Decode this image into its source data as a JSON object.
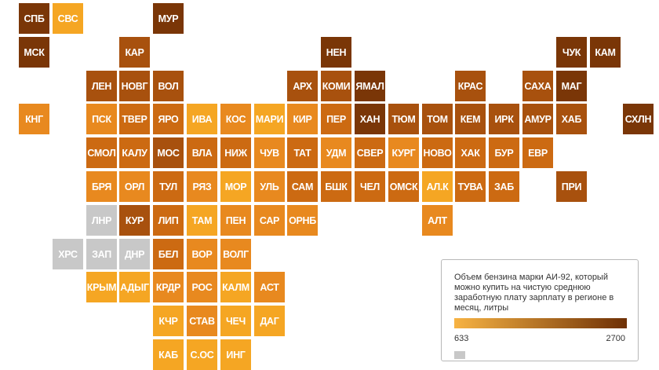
{
  "colors": {
    "scale": [
      "#f5a623",
      "#e8891f",
      "#cc6a12",
      "#a8510e",
      "#7a3607"
    ],
    "nodata": "#c8c8c8",
    "legend_low": "#f7b343",
    "legend_high": "#6e3006"
  },
  "legend": {
    "title": "Объем бензина марки АИ-92, который можно купить на чистую среднюю заработную плату зарплату в регионе в месяц, литры",
    "min_label": "633",
    "max_label": "2700"
  },
  "regions": [
    {
      "label": "СПБ",
      "col": 0,
      "row": 0,
      "level": 4
    },
    {
      "label": "СВС",
      "col": 1,
      "row": 0,
      "level": 0
    },
    {
      "label": "МУР",
      "col": 4,
      "row": 0,
      "level": 4
    },
    {
      "label": "МСК",
      "col": 0,
      "row": 1,
      "level": 4
    },
    {
      "label": "КАР",
      "col": 3,
      "row": 1,
      "level": 3
    },
    {
      "label": "НЕН",
      "col": 9,
      "row": 1,
      "level": 4
    },
    {
      "label": "ЧУК",
      "col": 16,
      "row": 1,
      "level": 4
    },
    {
      "label": "КАМ",
      "col": 17,
      "row": 1,
      "level": 4
    },
    {
      "label": "ЛЕН",
      "col": 2,
      "row": 2,
      "level": 3
    },
    {
      "label": "НОВГ",
      "col": 3,
      "row": 2,
      "level": 3
    },
    {
      "label": "ВОЛ",
      "col": 4,
      "row": 2,
      "level": 3
    },
    {
      "label": "АРХ",
      "col": 8,
      "row": 2,
      "level": 3
    },
    {
      "label": "КОМИ",
      "col": 9,
      "row": 2,
      "level": 3
    },
    {
      "label": "ЯМАЛ",
      "col": 10,
      "row": 2,
      "level": 4
    },
    {
      "label": "КРАС",
      "col": 13,
      "row": 2,
      "level": 3
    },
    {
      "label": "САХА",
      "col": 15,
      "row": 2,
      "level": 3
    },
    {
      "label": "МАГ",
      "col": 16,
      "row": 2,
      "level": 4
    },
    {
      "label": "КНГ",
      "col": 0,
      "row": 3,
      "level": 1
    },
    {
      "label": "ПСК",
      "col": 2,
      "row": 3,
      "level": 1
    },
    {
      "label": "ТВЕР",
      "col": 3,
      "row": 3,
      "level": 2
    },
    {
      "label": "ЯРО",
      "col": 4,
      "row": 3,
      "level": 2
    },
    {
      "label": "ИВА",
      "col": 5,
      "row": 3,
      "level": 0
    },
    {
      "label": "КОС",
      "col": 6,
      "row": 3,
      "level": 1
    },
    {
      "label": "МАРИ",
      "col": 7,
      "row": 3,
      "level": 0
    },
    {
      "label": "КИР",
      "col": 8,
      "row": 3,
      "level": 1
    },
    {
      "label": "ПЕР",
      "col": 9,
      "row": 3,
      "level": 2
    },
    {
      "label": "ХАН",
      "col": 10,
      "row": 3,
      "level": 4
    },
    {
      "label": "ТЮМ",
      "col": 11,
      "row": 3,
      "level": 3
    },
    {
      "label": "ТОМ",
      "col": 12,
      "row": 3,
      "level": 3
    },
    {
      "label": "КЕМ",
      "col": 13,
      "row": 3,
      "level": 3
    },
    {
      "label": "ИРК",
      "col": 14,
      "row": 3,
      "level": 3
    },
    {
      "label": "АМУР",
      "col": 15,
      "row": 3,
      "level": 3
    },
    {
      "label": "ХАБ",
      "col": 16,
      "row": 3,
      "level": 3
    },
    {
      "label": "СХЛН",
      "col": 18,
      "row": 3,
      "level": 4
    },
    {
      "label": "СМОЛ",
      "col": 2,
      "row": 4,
      "level": 2
    },
    {
      "label": "КАЛУ",
      "col": 3,
      "row": 4,
      "level": 2
    },
    {
      "label": "МОС",
      "col": 4,
      "row": 4,
      "level": 3
    },
    {
      "label": "ВЛА",
      "col": 5,
      "row": 4,
      "level": 2
    },
    {
      "label": "НИЖ",
      "col": 6,
      "row": 4,
      "level": 2
    },
    {
      "label": "ЧУВ",
      "col": 7,
      "row": 4,
      "level": 1
    },
    {
      "label": "ТАТ",
      "col": 8,
      "row": 4,
      "level": 2
    },
    {
      "label": "УДМ",
      "col": 9,
      "row": 4,
      "level": 1
    },
    {
      "label": "СВЕР",
      "col": 10,
      "row": 4,
      "level": 2
    },
    {
      "label": "КУРГ",
      "col": 11,
      "row": 4,
      "level": 1
    },
    {
      "label": "НОВО",
      "col": 12,
      "row": 4,
      "level": 2
    },
    {
      "label": "ХАК",
      "col": 13,
      "row": 4,
      "level": 2
    },
    {
      "label": "БУР",
      "col": 14,
      "row": 4,
      "level": 2
    },
    {
      "label": "ЕВР",
      "col": 15,
      "row": 4,
      "level": 2
    },
    {
      "label": "БРЯ",
      "col": 2,
      "row": 5,
      "level": 1
    },
    {
      "label": "ОРЛ",
      "col": 3,
      "row": 5,
      "level": 1
    },
    {
      "label": "ТУЛ",
      "col": 4,
      "row": 5,
      "level": 2
    },
    {
      "label": "РЯЗ",
      "col": 5,
      "row": 5,
      "level": 1
    },
    {
      "label": "МОР",
      "col": 6,
      "row": 5,
      "level": 0
    },
    {
      "label": "УЛЬ",
      "col": 7,
      "row": 5,
      "level": 1
    },
    {
      "label": "САМ",
      "col": 8,
      "row": 5,
      "level": 2
    },
    {
      "label": "БШК",
      "col": 9,
      "row": 5,
      "level": 2
    },
    {
      "label": "ЧЕЛ",
      "col": 10,
      "row": 5,
      "level": 2
    },
    {
      "label": "ОМСК",
      "col": 11,
      "row": 5,
      "level": 2
    },
    {
      "label": "АЛ.К",
      "col": 12,
      "row": 5,
      "level": 0
    },
    {
      "label": "ТУВА",
      "col": 13,
      "row": 5,
      "level": 2
    },
    {
      "label": "ЗАБ",
      "col": 14,
      "row": 5,
      "level": 2
    },
    {
      "label": "ПРИ",
      "col": 16,
      "row": 5,
      "level": 3
    },
    {
      "label": "ЛНР",
      "col": 2,
      "row": 6,
      "level": -1
    },
    {
      "label": "КУР",
      "col": 3,
      "row": 6,
      "level": 3
    },
    {
      "label": "ЛИП",
      "col": 4,
      "row": 6,
      "level": 2
    },
    {
      "label": "ТАМ",
      "col": 5,
      "row": 6,
      "level": 0
    },
    {
      "label": "ПЕН",
      "col": 6,
      "row": 6,
      "level": 1
    },
    {
      "label": "САР",
      "col": 7,
      "row": 6,
      "level": 1
    },
    {
      "label": "ОРНБ",
      "col": 8,
      "row": 6,
      "level": 1
    },
    {
      "label": "АЛТ",
      "col": 12,
      "row": 6,
      "level": 1
    },
    {
      "label": "ХРС",
      "col": 1,
      "row": 7,
      "level": -1
    },
    {
      "label": "ЗАП",
      "col": 2,
      "row": 7,
      "level": -1
    },
    {
      "label": "ДНР",
      "col": 3,
      "row": 7,
      "level": -1
    },
    {
      "label": "БЕЛ",
      "col": 4,
      "row": 7,
      "level": 2
    },
    {
      "label": "ВОР",
      "col": 5,
      "row": 7,
      "level": 1
    },
    {
      "label": "ВОЛГ",
      "col": 6,
      "row": 7,
      "level": 1
    },
    {
      "label": "КРЫМ",
      "col": 2,
      "row": 8,
      "level": 0
    },
    {
      "label": "АДЫГ",
      "col": 3,
      "row": 8,
      "level": 0
    },
    {
      "label": "КРДР",
      "col": 4,
      "row": 8,
      "level": 1
    },
    {
      "label": "РОС",
      "col": 5,
      "row": 8,
      "level": 1
    },
    {
      "label": "КАЛМ",
      "col": 6,
      "row": 8,
      "level": 0
    },
    {
      "label": "АСТ",
      "col": 7,
      "row": 8,
      "level": 1
    },
    {
      "label": "КЧР",
      "col": 4,
      "row": 9,
      "level": 0
    },
    {
      "label": "СТАВ",
      "col": 5,
      "row": 9,
      "level": 1
    },
    {
      "label": "ЧЕЧ",
      "col": 6,
      "row": 9,
      "level": 0
    },
    {
      "label": "ДАГ",
      "col": 7,
      "row": 9,
      "level": 0
    },
    {
      "label": "КАБ",
      "col": 4,
      "row": 10,
      "level": 0
    },
    {
      "label": "С.ОС",
      "col": 5,
      "row": 10,
      "level": 0
    },
    {
      "label": "ИНГ",
      "col": 6,
      "row": 10,
      "level": 0
    }
  ]
}
